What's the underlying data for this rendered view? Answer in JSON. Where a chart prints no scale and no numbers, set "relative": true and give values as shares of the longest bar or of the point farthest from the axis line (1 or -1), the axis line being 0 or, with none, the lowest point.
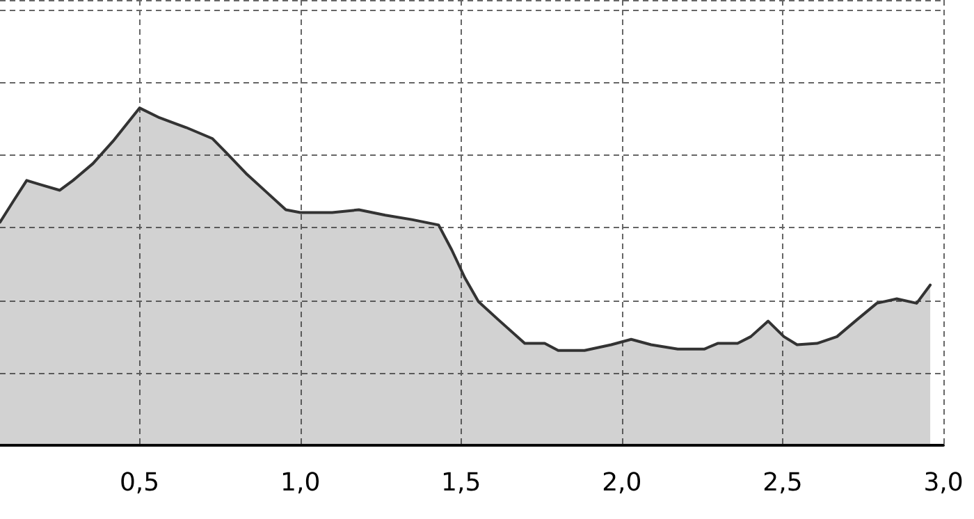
{
  "chart_data": {
    "type": "area",
    "relative": true,
    "color": "#333333",
    "x": [
      0.066,
      0.107,
      0.149,
      0.19,
      0.252,
      0.293,
      0.355,
      0.417,
      0.5,
      0.562,
      0.645,
      0.727,
      0.769,
      0.831,
      0.893,
      0.955,
      1.0,
      1.099,
      1.182,
      1.264,
      1.347,
      1.43,
      1.471,
      1.512,
      1.554,
      1.616,
      1.698,
      1.76,
      1.802,
      1.884,
      1.967,
      2.029,
      2.091,
      2.174,
      2.256,
      2.298,
      2.36,
      2.401,
      2.455,
      2.504,
      2.545,
      2.607,
      2.669,
      2.731,
      2.793,
      2.855,
      2.917,
      2.959
    ],
    "values": [
      0.661,
      0.723,
      0.785,
      0.773,
      0.756,
      0.785,
      0.835,
      0.901,
      1,
      0.971,
      0.942,
      0.909,
      0.868,
      0.806,
      0.752,
      0.698,
      0.69,
      0.69,
      0.698,
      0.682,
      0.669,
      0.653,
      0.579,
      0.496,
      0.426,
      0.372,
      0.302,
      0.302,
      0.281,
      0.281,
      0.298,
      0.314,
      0.298,
      0.285,
      0.285,
      0.302,
      0.302,
      0.322,
      0.368,
      0.322,
      0.298,
      0.302,
      0.322,
      0.372,
      0.421,
      0.434,
      0.421,
      0.475
    ],
    "xlim": [
      0.066,
      3.0
    ],
    "xticks": [
      {
        "value": 0.5,
        "label": "0,5"
      },
      {
        "value": 1,
        "label": "1,0"
      },
      {
        "value": 1.5,
        "label": "1,5"
      },
      {
        "value": 2,
        "label": "2,0"
      },
      {
        "value": 2.5,
        "label": "2,5"
      },
      {
        "value": 3,
        "label": "3,0"
      }
    ],
    "grid": true,
    "marker": "none",
    "line_style": "solid"
  }
}
